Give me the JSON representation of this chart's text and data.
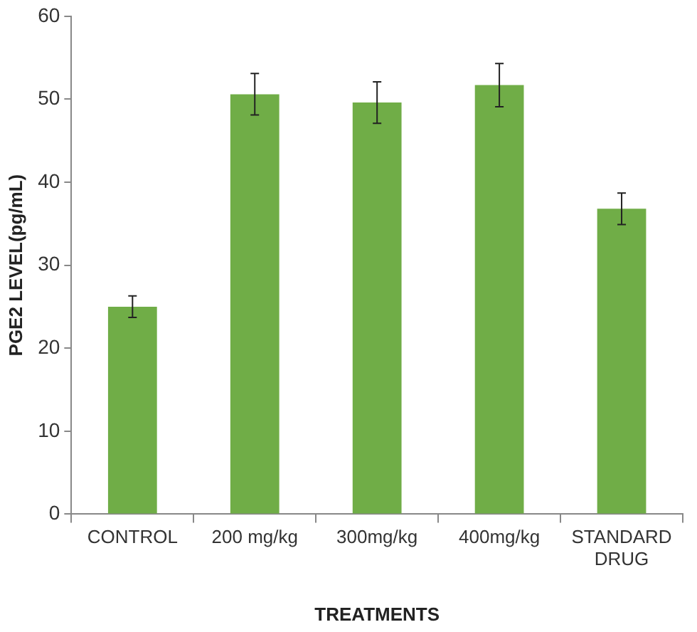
{
  "chart_data": {
    "type": "bar",
    "xlabel": "TREATMENTS",
    "ylabel": "PGE2 LEVEL(pg/mL)",
    "categories": [
      "CONTROL",
      "200 mg/kg",
      "300mg/kg",
      "400mg/kg",
      "STANDARD DRUG"
    ],
    "values": [
      25.0,
      50.6,
      49.6,
      51.7,
      36.8
    ],
    "errors": [
      1.3,
      2.5,
      2.5,
      2.6,
      1.9
    ],
    "color": "#70ad47",
    "ylim": [
      0,
      60
    ],
    "yticks": [
      0,
      10,
      20,
      30,
      40,
      50,
      60
    ],
    "grid": false,
    "legend": false
  }
}
